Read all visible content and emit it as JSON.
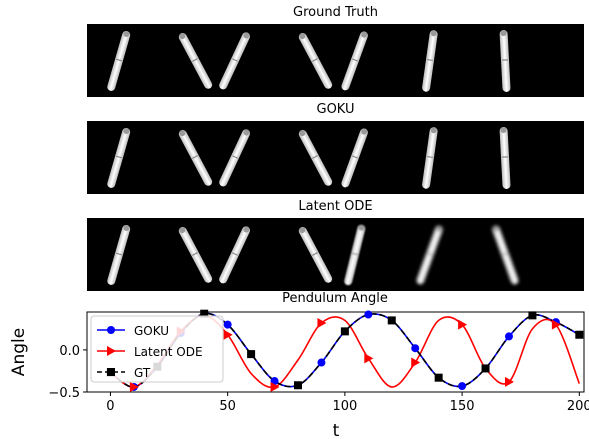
{
  "strips": [
    {
      "title": "Ground Truth",
      "angles": [
        16,
        -28,
        25,
        -28,
        20,
        8,
        -3
      ],
      "blur": [
        0,
        0,
        0,
        0,
        0,
        0,
        0
      ]
    },
    {
      "title": "GOKU",
      "angles": [
        16,
        -28,
        25,
        -28,
        20,
        8,
        -3
      ],
      "blur": [
        0,
        0,
        0,
        0,
        0,
        0,
        0
      ]
    },
    {
      "title": "Latent ODE",
      "angles": [
        16,
        -28,
        25,
        -28,
        14,
        20,
        -20
      ],
      "blur": [
        0,
        0,
        0,
        0,
        0.8,
        1.6,
        1.6
      ]
    }
  ],
  "chart_data": {
    "type": "line",
    "title": "Pendulum Angle",
    "xlabel": "t",
    "ylabel": "Angle",
    "xlim": [
      -10,
      202
    ],
    "ylim": [
      -0.5,
      0.45
    ],
    "xticks": [
      0,
      50,
      100,
      150,
      200
    ],
    "yticks": [
      -0.5,
      0.0
    ],
    "ytick_labels": [
      "−0.5",
      "0.0"
    ],
    "series": [
      {
        "name": "GOKU",
        "color": "#0000ff",
        "marker": "circle",
        "x": [
          0,
          10,
          20,
          30,
          40,
          50,
          60,
          70,
          80,
          90,
          100,
          110,
          120,
          130,
          140,
          150,
          160,
          170,
          180,
          190,
          200
        ],
        "y": [
          -0.27,
          -0.44,
          -0.2,
          0.2,
          0.43,
          0.3,
          -0.05,
          -0.37,
          -0.42,
          -0.15,
          0.22,
          0.42,
          0.35,
          0.02,
          -0.33,
          -0.43,
          -0.22,
          0.16,
          0.41,
          0.33,
          0.18
        ]
      },
      {
        "name": "Latent ODE",
        "color": "#ff0000",
        "marker": "triangle-right",
        "x": [
          0,
          10,
          20,
          30,
          40,
          50,
          60,
          70,
          80,
          90,
          100,
          110,
          120,
          130,
          140,
          150,
          160,
          170,
          180,
          190,
          200
        ],
        "y": [
          -0.27,
          -0.44,
          -0.18,
          0.22,
          0.41,
          0.18,
          -0.28,
          -0.44,
          -0.12,
          0.32,
          0.35,
          -0.1,
          -0.44,
          -0.15,
          0.35,
          0.3,
          -0.22,
          -0.38,
          0.25,
          0.3,
          -0.4
        ]
      },
      {
        "name": "GT",
        "color": "#000000",
        "marker": "square",
        "x": [
          0,
          10,
          20,
          30,
          40,
          50,
          60,
          70,
          80,
          90,
          100,
          110,
          120,
          130,
          140,
          150,
          160,
          170,
          180,
          190,
          200
        ],
        "y": [
          -0.27,
          -0.44,
          -0.2,
          0.2,
          0.43,
          0.3,
          -0.05,
          -0.37,
          -0.42,
          -0.15,
          0.22,
          0.42,
          0.35,
          0.02,
          -0.33,
          -0.43,
          -0.22,
          0.16,
          0.41,
          0.33,
          0.18
        ]
      }
    ],
    "legend_position": "top-left"
  }
}
